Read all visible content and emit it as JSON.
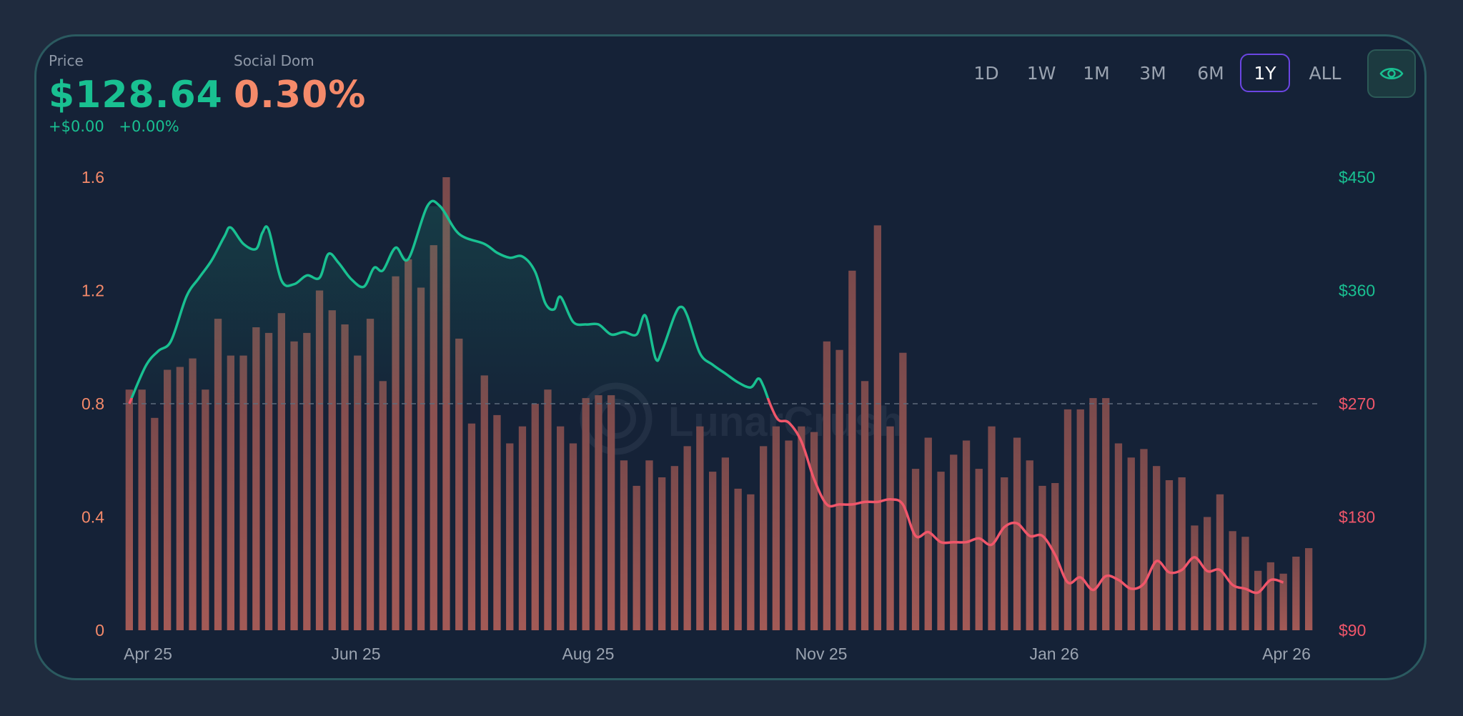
{
  "header": {
    "price_label": "Price",
    "price_value": "$128.64",
    "change_abs": "+$0.00",
    "change_pct": "+0.00%",
    "social_label": "Social Dom",
    "social_value": "0.30%"
  },
  "timeframes": [
    "1D",
    "1W",
    "1M",
    "3M",
    "6M",
    "1Y",
    "ALL"
  ],
  "active_timeframe": "1Y",
  "watermark": "LunarCrush",
  "colors": {
    "price_up": "#19c091",
    "price_down": "#f0566a",
    "social": "#f58a6a",
    "bar": "#8c4e4e",
    "active_border": "#6b46e3"
  },
  "icons": {
    "visibility_toggle": "eye-icon",
    "watermark_logo": "lunarcrush-logo-icon"
  },
  "chart_data": {
    "type": "bar+line",
    "x_labels": [
      "Apr 25",
      "Jun 25",
      "Aug 25",
      "Nov 25",
      "Jan 26",
      "Apr 26"
    ],
    "y_left": {
      "ticks": [
        "1.6",
        "1.2",
        "0.8",
        "0.4",
        "0"
      ],
      "range": [
        0,
        1.6
      ]
    },
    "y_right": {
      "ticks": [
        "$450",
        "$360",
        "$270",
        "$180",
        "$90"
      ],
      "range": [
        90,
        450
      ]
    },
    "reference_line": 270,
    "bars": {
      "name": "Social Dom",
      "values": [
        0.85,
        0.85,
        0.75,
        0.92,
        0.93,
        0.96,
        0.85,
        1.1,
        0.97,
        0.97,
        1.07,
        1.05,
        1.12,
        1.02,
        1.05,
        1.2,
        1.13,
        1.08,
        0.97,
        1.1,
        0.88,
        1.25,
        1.31,
        1.21,
        1.36,
        1.6,
        1.03,
        0.73,
        0.9,
        0.76,
        0.66,
        0.72,
        0.8,
        0.85,
        0.72,
        0.66,
        0.82,
        0.83,
        0.83,
        0.6,
        0.51,
        0.6,
        0.54,
        0.58,
        0.65,
        0.72,
        0.56,
        0.61,
        0.5,
        0.48,
        0.65,
        0.72,
        0.67,
        0.72,
        0.7,
        1.02,
        0.99,
        1.27,
        0.88,
        1.43,
        0.72,
        0.98,
        0.57,
        0.68,
        0.56,
        0.62,
        0.67,
        0.57,
        0.72,
        0.54,
        0.68,
        0.6,
        0.51,
        0.52,
        0.78,
        0.78,
        0.82,
        0.82,
        0.66,
        0.61,
        0.64,
        0.58,
        0.53,
        0.54,
        0.37,
        0.4,
        0.48,
        0.35,
        0.33,
        0.21,
        0.24,
        0.2,
        0.26,
        0.29
      ]
    },
    "price_series": {
      "name": "Price",
      "points": [
        [
          0,
          270
        ],
        [
          1.3,
          300
        ],
        [
          2.3,
          312
        ],
        [
          3.3,
          320
        ],
        [
          4.5,
          355
        ],
        [
          5.5,
          370
        ],
        [
          6.5,
          384
        ],
        [
          7.5,
          403
        ],
        [
          8,
          410
        ],
        [
          9,
          397
        ],
        [
          10,
          393
        ],
        [
          10.5,
          406
        ],
        [
          11,
          408
        ],
        [
          12,
          368
        ],
        [
          13,
          365
        ],
        [
          14,
          372
        ],
        [
          15,
          370
        ],
        [
          15.7,
          389
        ],
        [
          16.5,
          382
        ],
        [
          17.5,
          369
        ],
        [
          18.5,
          363
        ],
        [
          19.3,
          378
        ],
        [
          20,
          376
        ],
        [
          21,
          394
        ],
        [
          22,
          385
        ],
        [
          23.5,
          427
        ],
        [
          24.5,
          427
        ],
        [
          26,
          405
        ],
        [
          28,
          397
        ],
        [
          29,
          390
        ],
        [
          30,
          386
        ],
        [
          31,
          387
        ],
        [
          32,
          375
        ],
        [
          32.8,
          350
        ],
        [
          33.5,
          345
        ],
        [
          34,
          355
        ],
        [
          35,
          335
        ],
        [
          36,
          333
        ],
        [
          37,
          333
        ],
        [
          38,
          325
        ],
        [
          39,
          327
        ],
        [
          40,
          325
        ],
        [
          40.7,
          340
        ],
        [
          41.5,
          306
        ],
        [
          42,
          312
        ],
        [
          43,
          340
        ],
        [
          43.5,
          347
        ],
        [
          44,
          340
        ],
        [
          45,
          310
        ],
        [
          46,
          301
        ],
        [
          47,
          294
        ],
        [
          48,
          287
        ],
        [
          49,
          283
        ],
        [
          49.6,
          290
        ],
        [
          50,
          284
        ],
        [
          50.6,
          268
        ],
        [
          51.2,
          257
        ],
        [
          52,
          255
        ],
        [
          53,
          240
        ],
        [
          54,
          210
        ],
        [
          55,
          190
        ],
        [
          56,
          190
        ],
        [
          57,
          190
        ],
        [
          58,
          192
        ],
        [
          59,
          192
        ],
        [
          60,
          194
        ],
        [
          61,
          190
        ],
        [
          62,
          165
        ],
        [
          63,
          168
        ],
        [
          64,
          160
        ],
        [
          65,
          160
        ],
        [
          66,
          160
        ],
        [
          67,
          163
        ],
        [
          68,
          158
        ],
        [
          69,
          172
        ],
        [
          70,
          175
        ],
        [
          71,
          165
        ],
        [
          72,
          165
        ],
        [
          73,
          150
        ],
        [
          74,
          128
        ],
        [
          75,
          132
        ],
        [
          76,
          122
        ],
        [
          77,
          133
        ],
        [
          78,
          130
        ],
        [
          79,
          123
        ],
        [
          80,
          127
        ],
        [
          81,
          145
        ],
        [
          82,
          136
        ],
        [
          83,
          138
        ],
        [
          84,
          148
        ],
        [
          85,
          137
        ],
        [
          86,
          138
        ],
        [
          87,
          126
        ],
        [
          88,
          123
        ],
        [
          89,
          120
        ],
        [
          90,
          130
        ],
        [
          91,
          128
        ]
      ]
    }
  }
}
